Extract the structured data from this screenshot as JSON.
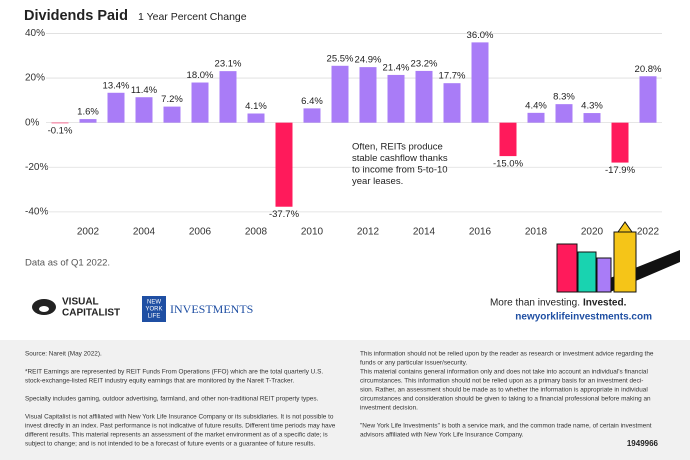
{
  "chart_data": {
    "type": "bar",
    "title": "Dividends Paid",
    "subtitle": "1 Year Percent Change",
    "categories": [
      null,
      "2002",
      null,
      "2004",
      null,
      "2006",
      null,
      "2008",
      null,
      "2010",
      null,
      "2012",
      null,
      "2014",
      null,
      "2016",
      null,
      "2018",
      null,
      "2020",
      null,
      "2022"
    ],
    "values": [
      -0.1,
      1.6,
      13.4,
      11.4,
      7.2,
      18.0,
      23.1,
      4.1,
      -37.7,
      6.4,
      25.5,
      24.9,
      21.4,
      23.2,
      17.7,
      36.0,
      -15.0,
      4.4,
      8.3,
      4.3,
      -17.9,
      20.8
    ],
    "value_labels": [
      "-0.1%",
      "1.6%",
      "13.4%",
      "11.4%",
      "7.2%",
      "18.0%",
      "23.1%",
      "4.1%",
      "-37.7%",
      "6.4%",
      "25.5%",
      "24.9%",
      "21.4%",
      "23.2%",
      "17.7%",
      "36.0%",
      "-15.0%",
      "4.4%",
      "8.3%",
      "4.3%",
      "-17.9%",
      "20.8%"
    ],
    "positive_color": "#a97cf7",
    "negative_color": "#ff1a5b",
    "ylim": [
      -45,
      42
    ],
    "yticks": [
      {
        "value": 40,
        "label": "40%"
      },
      {
        "value": 20,
        "label": "20%"
      },
      {
        "value": 0,
        "label": "0%"
      },
      {
        "value": -20,
        "label": "-20%"
      },
      {
        "value": -40,
        "label": "-40%"
      }
    ],
    "grid": true,
    "annotation": [
      "Often, REITs produce",
      "stable cashflow thanks",
      "to income from 5-to-10",
      "year leases."
    ],
    "note": "Data as of Q1 2022."
  },
  "branding": {
    "visual_capitalist": [
      "VISUAL",
      "CAPITALIST"
    ],
    "nyl_logo": [
      "NEW",
      "YORK",
      "LIFE"
    ],
    "investments": "INVESTMENTS",
    "tagline": "More than investing.",
    "tagline_bold": "Invested.",
    "url": "newyorklifeinvestments.com"
  },
  "footer": {
    "left": [
      [
        "Source: Nareit (May 2022)."
      ],
      [
        "*REIT Earnings are represented by REIT Funds From Operations (FFO) which are the total quarterly U.S.",
        "stock-exchange-listed REIT industry equity earnings that are monitored by the Nareit T-Tracker."
      ],
      [
        "Specialty includes gaming, outdoor advertising, farmland, and other non-traditional REIT property types."
      ],
      [
        "Visual Capitalist is not affiliated with New York Life Insurance Company or its subsidiaries. It is not possible to",
        "invest directly in an index. Past performance is not indicative of future results. Different time periods may have",
        "different results. This material represents an assessment of the market environment as of a specific date; is",
        "subject to change; and is not intended to be a forecast of future events or a guarantee of future results."
      ]
    ],
    "right": [
      [
        "This information should not be relied upon by the reader as research or investment advice regarding the",
        "funds or any particular issuer/security.",
        "This material contains general information only and does not take into account an individual's financial",
        "circumstances. This information should not be relied upon as a primary basis for an investment deci-",
        "sion. Rather, an assessment should be made as to whether the information is appropriate in individual",
        "circumstances and consideration should be given to taking to a financial professional before making an",
        "investment decision."
      ],
      [
        "\"New York Life Investments\" is both a service mark, and the common trade name, of certain investment",
        "advisors affiliated with New York Life Insurance Company."
      ]
    ],
    "code": "1949966"
  }
}
